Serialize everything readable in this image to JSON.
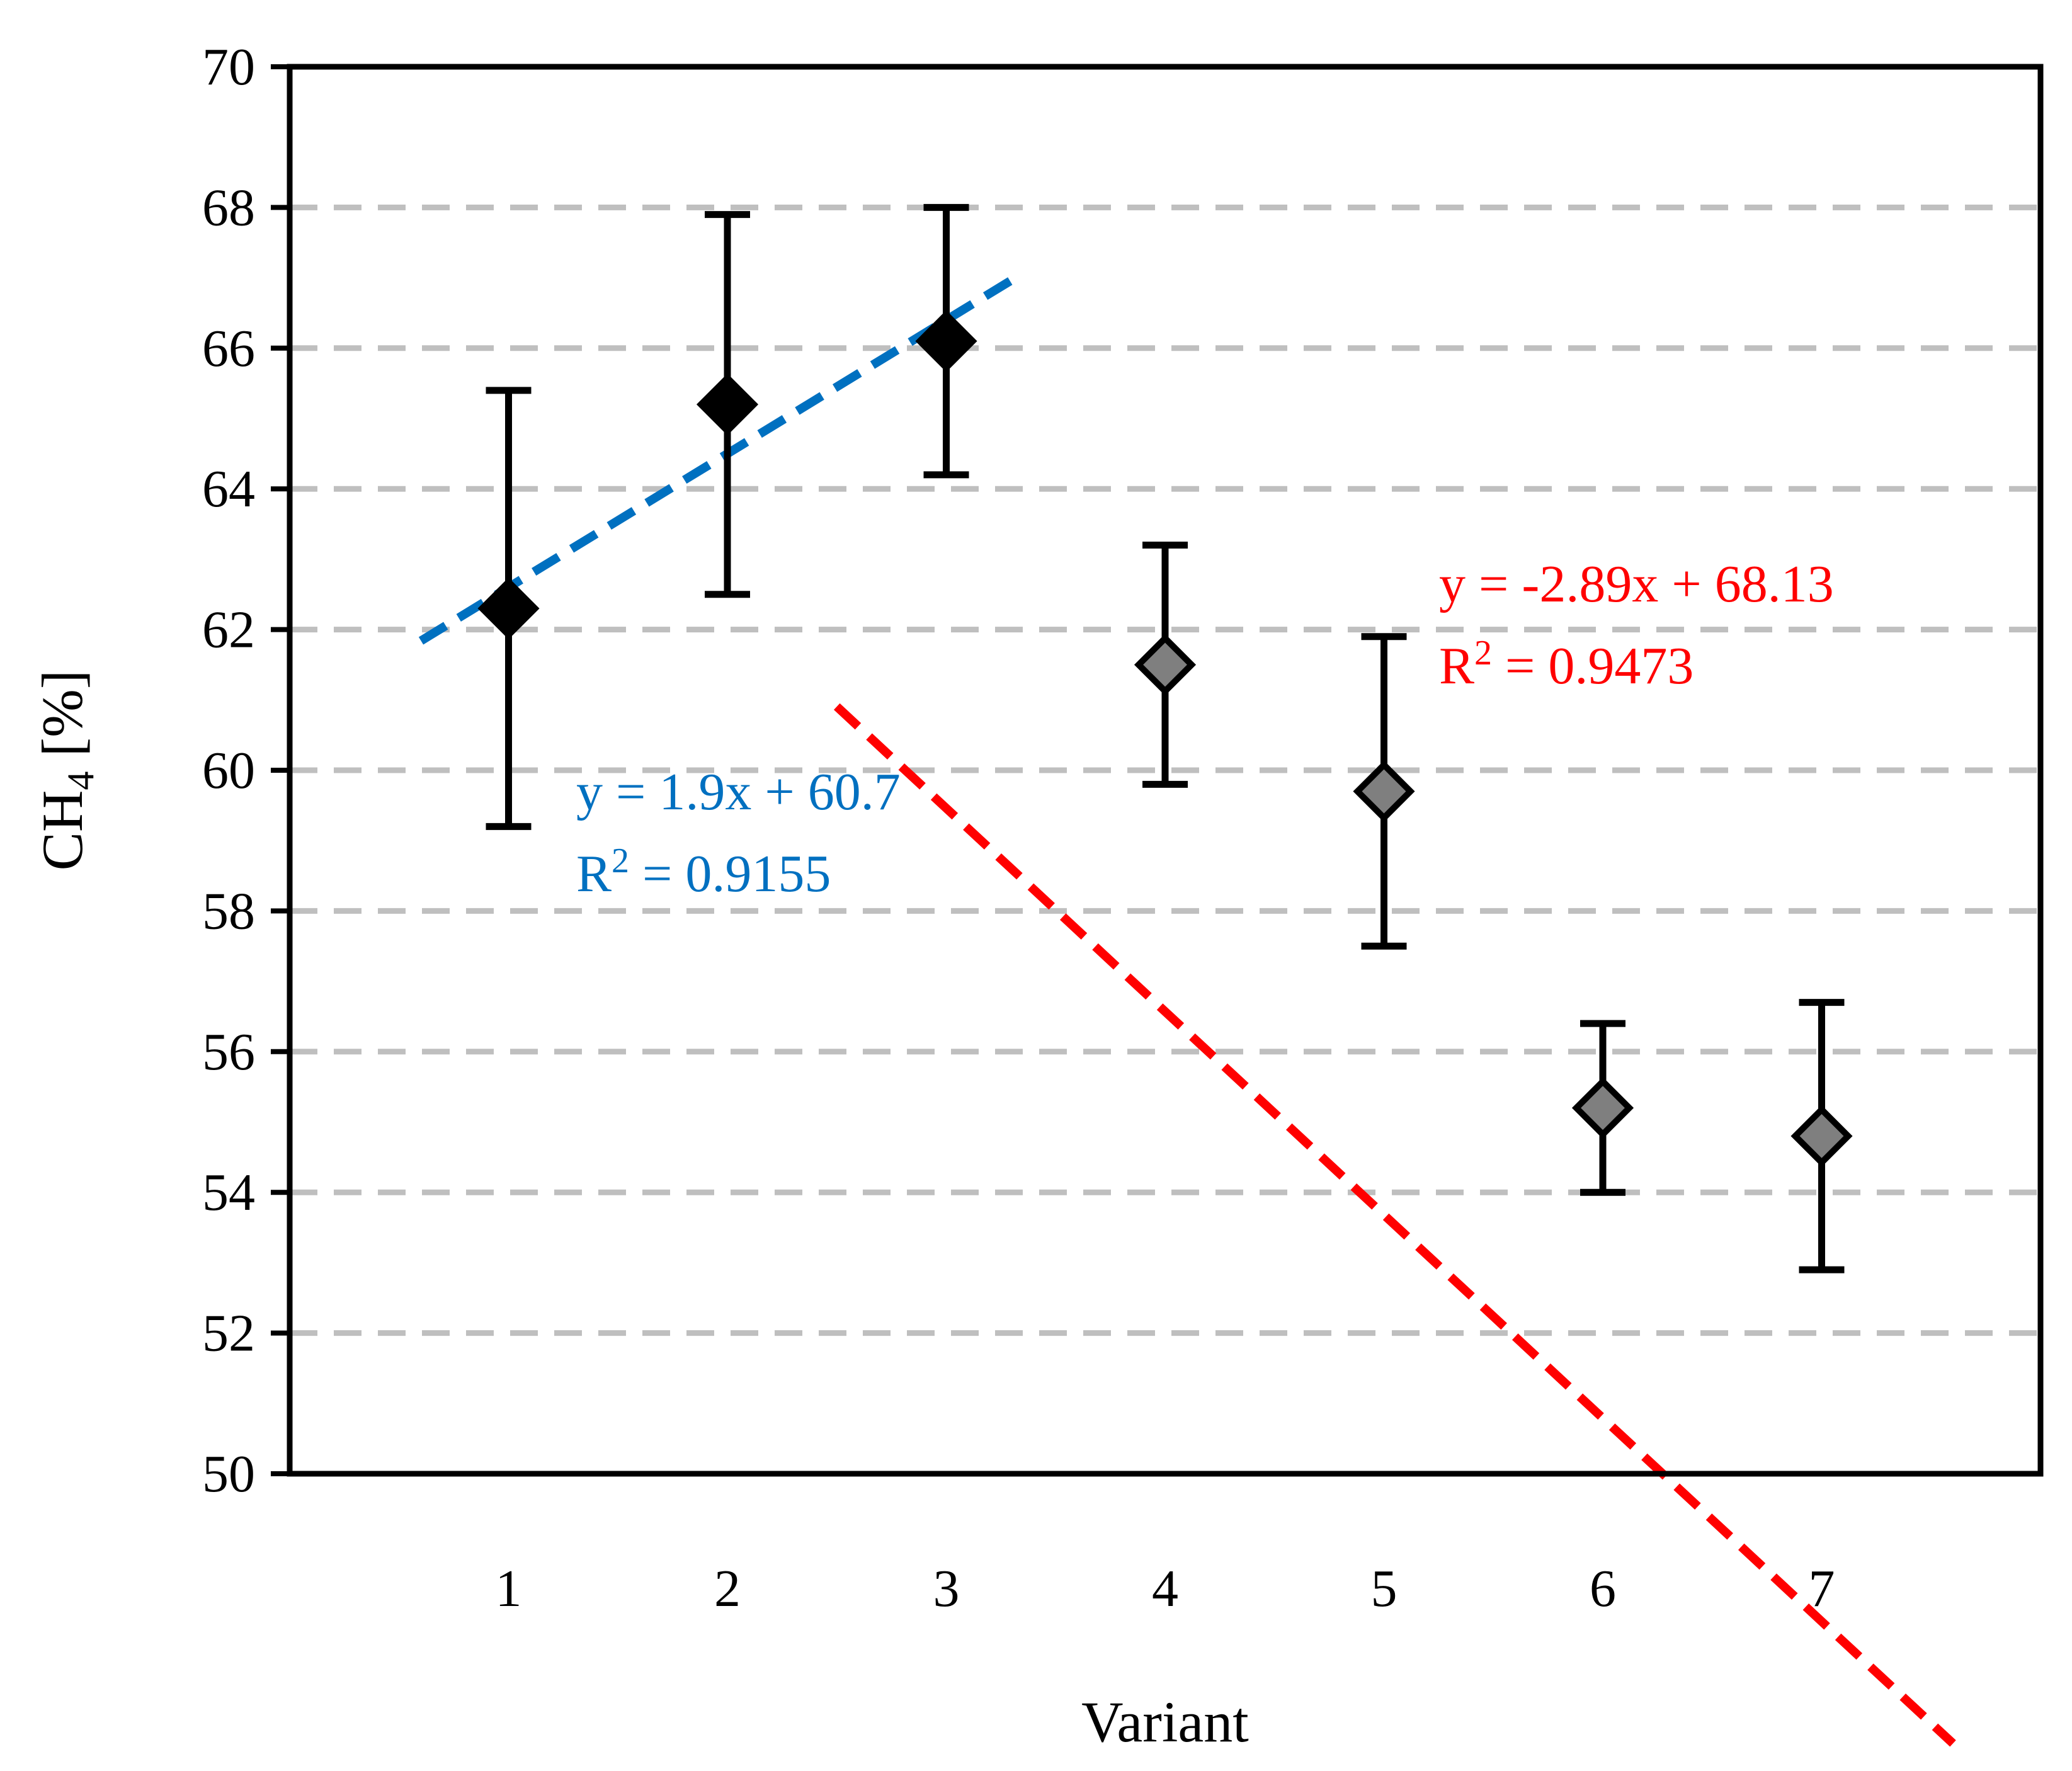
{
  "chart_data": {
    "type": "scatter",
    "title": "",
    "xlabel": "Variant",
    "ylabel_main": "CH",
    "ylabel_sub": "4",
    "ylabel_unit": " [%]",
    "xlim": [
      0,
      8
    ],
    "ylim": [
      50,
      70
    ],
    "x_ticks": [
      "1",
      "2",
      "3",
      "4",
      "5",
      "6",
      "7"
    ],
    "y_ticks": [
      "50",
      "52",
      "54",
      "56",
      "58",
      "60",
      "62",
      "64",
      "66",
      "68",
      "70"
    ],
    "grid": "horizontal dashed",
    "points": [
      {
        "x": 1,
        "y": 62.3,
        "err_low": 59.2,
        "err_high": 65.4,
        "fill": "#000000"
      },
      {
        "x": 2,
        "y": 65.2,
        "err_low": 62.5,
        "err_high": 67.9,
        "fill": "#000000"
      },
      {
        "x": 3,
        "y": 66.1,
        "err_low": 64.2,
        "err_high": 68.0,
        "fill": "#000000"
      },
      {
        "x": 4,
        "y": 61.5,
        "err_low": 59.8,
        "err_high": 63.2,
        "fill": "#7f7f7f"
      },
      {
        "x": 5,
        "y": 59.7,
        "err_low": 57.5,
        "err_high": 61.9,
        "fill": "#7f7f7f"
      },
      {
        "x": 6,
        "y": 55.2,
        "err_low": 54.0,
        "err_high": 56.4,
        "fill": "#7f7f7f"
      },
      {
        "x": 7,
        "y": 54.8,
        "err_low": 52.9,
        "err_high": 56.7,
        "fill": "#7f7f7f"
      }
    ],
    "trendlines": [
      {
        "name": "blue-trend",
        "slope": 1.9,
        "intercept": 60.7,
        "x_range": [
          0.6,
          3.3
        ],
        "color": "#0070c0",
        "equation": "y = 1.9x + 60.7",
        "r2_prefix": "R",
        "r2_suffix": " = 0.9155"
      },
      {
        "name": "red-trend",
        "slope": -2.89,
        "intercept": 68.13,
        "x_range": [
          2.5,
          7.6
        ],
        "color": "#ff0000",
        "equation": "y = -2.89x + 68.13",
        "r2_prefix": "R",
        "r2_suffix": " = 0.9473"
      }
    ],
    "colors": {
      "grid": "#bfbfbf",
      "axis": "#000000"
    }
  }
}
